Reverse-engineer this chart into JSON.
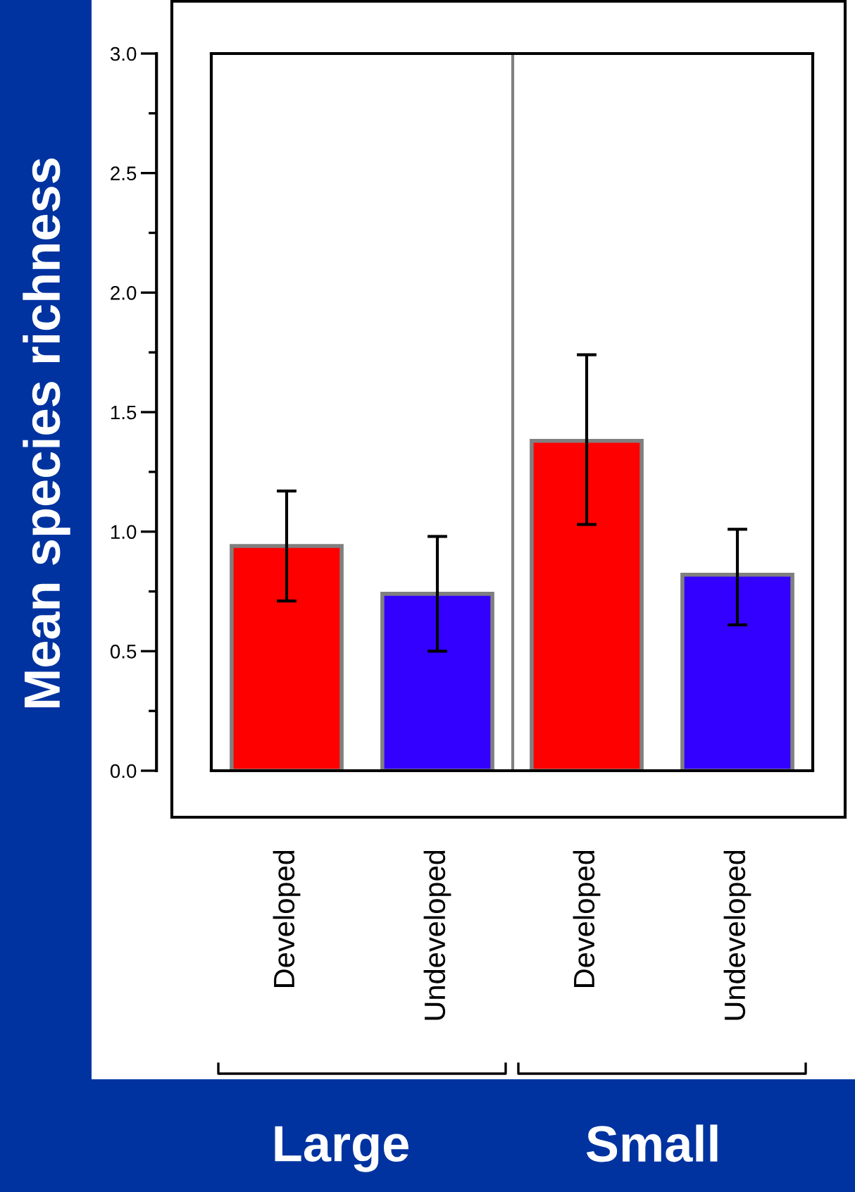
{
  "chart_data": [
    {
      "type": "bar",
      "xlabel": "Large",
      "ylabel": "Mean species richness",
      "categories": [
        "Developed",
        "Undeveloped"
      ],
      "colors": [
        "#ff0000",
        "#3300ff"
      ],
      "values": [
        0.94,
        0.74
      ],
      "errors": [
        [
          0.71,
          1.17
        ],
        [
          0.5,
          0.98
        ]
      ],
      "ylim": [
        0,
        3
      ],
      "yticks": [
        {
          "value": 0,
          "label": "0.0"
        },
        {
          "value": 0.5,
          "label": "0.5"
        },
        {
          "value": 1,
          "label": "1.0"
        },
        {
          "value": 1.5,
          "label": "1.5"
        },
        {
          "value": 2,
          "label": "2.0"
        },
        {
          "value": 2.5,
          "label": "2.5"
        },
        {
          "value": 3,
          "label": "3.0"
        }
      ]
    },
    {
      "type": "bar",
      "xlabel": "Small",
      "categories": [
        "Developed",
        "Undeveloped"
      ],
      "colors": [
        "#ff0000",
        "#3300ff"
      ],
      "values": [
        1.38,
        0.82
      ],
      "errors": [
        [
          1.03,
          1.74
        ],
        [
          0.61,
          1.01
        ]
      ],
      "ylim": [
        0,
        3
      ],
      "tick_labels": "x"
    }
  ]
}
